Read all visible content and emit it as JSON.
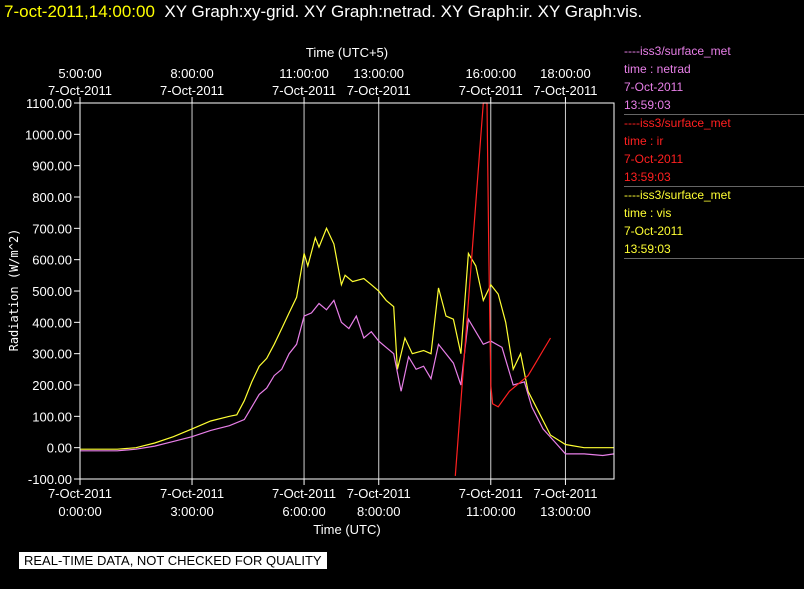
{
  "header": {
    "timestamp": "7-oct-2011,14:00:00",
    "title": "XY Graph:xy-grid.  XY Graph:netrad.  XY Graph:ir.  XY Graph:vis."
  },
  "legend": [
    {
      "source": "----iss3/surface_met",
      "var": "time : netrad",
      "date": "7-Oct-2011",
      "time": "13:59:03",
      "color": "#e87fe8"
    },
    {
      "source": "----iss3/surface_met",
      "var": "time : ir",
      "date": "7-Oct-2011",
      "time": "13:59:03",
      "color": "#ff2020"
    },
    {
      "source": "----iss3/surface_met",
      "var": "time : vis",
      "date": "7-Oct-2011",
      "time": "13:59:03",
      "color": "#ffff33"
    }
  ],
  "footer": "REAL-TIME DATA, NOT CHECKED FOR QUALITY",
  "chart_data": {
    "type": "line",
    "xlabel": "Time (UTC)",
    "x2label": "Time (UTC+5)",
    "ylabel": "Radiation (W/m^2)",
    "xlim": [
      0.0,
      14.3
    ],
    "ylim": [
      -100,
      1100
    ],
    "grid": true,
    "yticks": [
      {
        "value": -100,
        "label": "-100.00"
      },
      {
        "value": 0,
        "label": "0.00"
      },
      {
        "value": 100,
        "label": "100.00"
      },
      {
        "value": 200,
        "label": "200.00"
      },
      {
        "value": 300,
        "label": "300.00"
      },
      {
        "value": 400,
        "label": "400.00"
      },
      {
        "value": 500,
        "label": "500.00"
      },
      {
        "value": 600,
        "label": "600.00"
      },
      {
        "value": 700,
        "label": "700.00"
      },
      {
        "value": 800,
        "label": "800.00"
      },
      {
        "value": 900,
        "label": "900.00"
      },
      {
        "value": 1000,
        "label": "1000.00"
      },
      {
        "value": 1100,
        "label": "1100.00"
      }
    ],
    "xticks_bottom": [
      {
        "hour": 0,
        "date": "7-Oct-2011",
        "time": "0:00:00"
      },
      {
        "hour": 3,
        "date": "7-Oct-2011",
        "time": "3:00:00"
      },
      {
        "hour": 6,
        "date": "7-Oct-2011",
        "time": "6:00:00"
      },
      {
        "hour": 8,
        "date": "7-Oct-2011",
        "time": "8:00:00"
      },
      {
        "hour": 11,
        "date": "7-Oct-2011",
        "time": "11:00:00"
      },
      {
        "hour": 13,
        "date": "7-Oct-2011",
        "time": "13:00:00"
      }
    ],
    "xticks_top": [
      {
        "hour": 0,
        "date": "7-Oct-2011",
        "time": "5:00:00"
      },
      {
        "hour": 3,
        "date": "7-Oct-2011",
        "time": "8:00:00"
      },
      {
        "hour": 6,
        "date": "7-Oct-2011",
        "time": "11:00:00"
      },
      {
        "hour": 8,
        "date": "7-Oct-2011",
        "time": "13:00:00"
      },
      {
        "hour": 11,
        "date": "7-Oct-2011",
        "time": "16:00:00"
      },
      {
        "hour": 13,
        "date": "7-Oct-2011",
        "time": "18:00:00"
      }
    ],
    "gridlines_hours": [
      3,
      6,
      8,
      11,
      13
    ],
    "series": [
      {
        "var": "vis",
        "color": "#ffff33",
        "x": [
          0,
          1,
          1.5,
          2,
          2.5,
          3,
          3.5,
          4,
          4.2,
          4.4,
          4.6,
          4.8,
          5,
          5.2,
          5.4,
          5.6,
          5.8,
          6,
          6.1,
          6.3,
          6.4,
          6.6,
          6.8,
          7,
          7.1,
          7.3,
          7.6,
          7.8,
          8,
          8.2,
          8.4,
          8.5,
          8.7,
          8.9,
          9.2,
          9.4,
          9.6,
          9.8,
          10,
          10.2,
          10.4,
          10.6,
          10.8,
          11,
          11.2,
          11.4,
          11.6,
          11.8,
          12,
          12.3,
          12.6,
          13,
          13.5,
          14,
          14.3
        ],
        "y": [
          -5,
          -5,
          0,
          15,
          35,
          60,
          85,
          100,
          105,
          150,
          210,
          260,
          285,
          330,
          380,
          430,
          480,
          620,
          580,
          670,
          640,
          700,
          650,
          520,
          550,
          530,
          540,
          520,
          500,
          470,
          450,
          250,
          350,
          300,
          310,
          300,
          510,
          420,
          410,
          300,
          620,
          580,
          470,
          520,
          490,
          400,
          250,
          300,
          180,
          110,
          40,
          10,
          0,
          0,
          0
        ]
      },
      {
        "var": "netrad",
        "color": "#e87fe8",
        "x": [
          0,
          1,
          1.5,
          2,
          2.5,
          3,
          3.5,
          4,
          4.4,
          4.6,
          4.8,
          5,
          5.2,
          5.4,
          5.6,
          5.8,
          6,
          6.2,
          6.4,
          6.6,
          6.8,
          7,
          7.2,
          7.4,
          7.6,
          7.8,
          8,
          8.2,
          8.4,
          8.6,
          8.8,
          9,
          9.2,
          9.4,
          9.6,
          9.8,
          10,
          10.2,
          10.4,
          10.6,
          10.8,
          11,
          11.3,
          11.6,
          11.9,
          12.1,
          12.4,
          12.7,
          13,
          13.5,
          14,
          14.3
        ],
        "y": [
          -10,
          -10,
          -5,
          5,
          20,
          35,
          55,
          70,
          90,
          130,
          170,
          190,
          230,
          250,
          300,
          330,
          420,
          430,
          460,
          440,
          470,
          400,
          380,
          420,
          350,
          370,
          340,
          320,
          300,
          180,
          290,
          250,
          260,
          220,
          330,
          300,
          270,
          200,
          410,
          370,
          330,
          340,
          320,
          200,
          210,
          130,
          60,
          20,
          -20,
          -20,
          -25,
          -20
        ]
      },
      {
        "var": "ir",
        "color": "#ff2020",
        "x": [
          10.05,
          10.8,
          10.82,
          10.9,
          10.95,
          11.0,
          11.05,
          11.2,
          11.5,
          11.8,
          12.0,
          12.2,
          12.4,
          12.6
        ],
        "y": [
          -90,
          1100,
          1100,
          1100,
          600,
          200,
          140,
          130,
          180,
          210,
          230,
          270,
          310,
          350
        ]
      }
    ]
  }
}
